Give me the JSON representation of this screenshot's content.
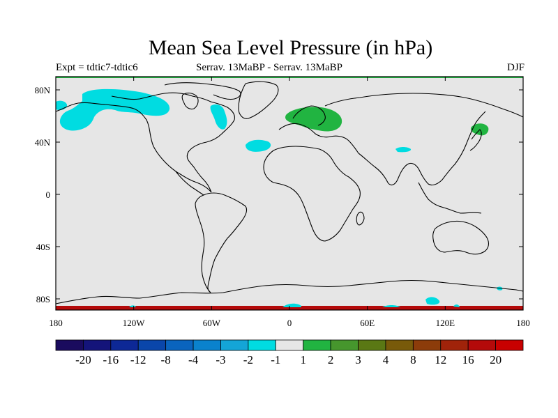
{
  "header": {
    "title": "Mean Sea Level Pressure (in hPa)",
    "left": "Expt = tdtic7-tdtic6",
    "center": "Serrav.   13MaBP - Serrav.   13MaBP",
    "right": "DJF"
  },
  "map": {
    "lat_ticks": [
      "80N",
      "40N",
      "0",
      "40S",
      "80S"
    ],
    "lon_ticks": [
      "180",
      "120W",
      "60W",
      "0",
      "60E",
      "120E",
      "180"
    ],
    "background_color": "#e6e6e6",
    "coast_color": "#000000"
  },
  "colorbar": {
    "colors": [
      "#1a0b5e",
      "#14147a",
      "#0d2896",
      "#0a46aa",
      "#0a64be",
      "#0a82cd",
      "#14a5d7",
      "#00dce1",
      "#e6e6e6",
      "#21b441",
      "#46962d",
      "#5a7814",
      "#785a0a",
      "#8c3c0a",
      "#a0230a",
      "#b40a0a",
      "#c80000"
    ],
    "labels": [
      "-20",
      "-16",
      "-12",
      "-8",
      "-4",
      "-3",
      "-2",
      "-1",
      "1",
      "2",
      "3",
      "4",
      "8",
      "12",
      "16",
      "20"
    ]
  }
}
